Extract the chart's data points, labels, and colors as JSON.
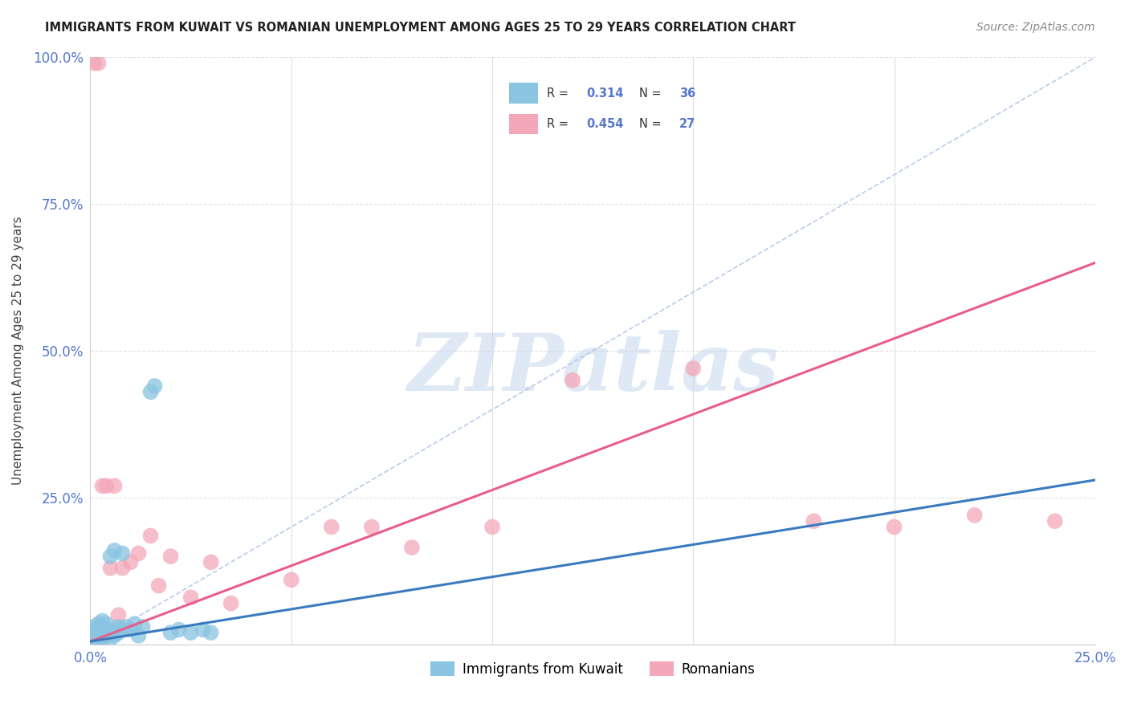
{
  "title": "IMMIGRANTS FROM KUWAIT VS ROMANIAN UNEMPLOYMENT AMONG AGES 25 TO 29 YEARS CORRELATION CHART",
  "source": "Source: ZipAtlas.com",
  "ylabel": "Unemployment Among Ages 25 to 29 years",
  "xlim": [
    0,
    0.25
  ],
  "ylim": [
    0,
    1.0
  ],
  "blue_R": 0.314,
  "blue_N": 36,
  "pink_R": 0.454,
  "pink_N": 27,
  "blue_color": "#89c4e1",
  "pink_color": "#f4a7b9",
  "blue_line_color": "#3a7abf",
  "pink_line_color": "#e85d8a",
  "dash_line_color": "#b0c8e8",
  "watermark": "ZIPatlas",
  "watermark_color": "#c5d8ee",
  "tick_color": "#5577cc",
  "grid_color": "#e0e0e0",
  "blue_x": [
    0.001,
    0.001,
    0.001,
    0.002,
    0.002,
    0.002,
    0.002,
    0.003,
    0.003,
    0.003,
    0.003,
    0.004,
    0.004,
    0.004,
    0.005,
    0.005,
    0.005,
    0.006,
    0.006,
    0.006,
    0.007,
    0.007,
    0.008,
    0.008,
    0.009,
    0.01,
    0.011,
    0.012,
    0.013,
    0.015,
    0.016,
    0.02,
    0.022,
    0.025,
    0.028,
    0.03
  ],
  "blue_y": [
    0.01,
    0.02,
    0.03,
    0.01,
    0.015,
    0.025,
    0.035,
    0.01,
    0.02,
    0.03,
    0.04,
    0.015,
    0.025,
    0.035,
    0.01,
    0.02,
    0.15,
    0.015,
    0.025,
    0.16,
    0.02,
    0.03,
    0.025,
    0.155,
    0.03,
    0.025,
    0.035,
    0.015,
    0.03,
    0.43,
    0.44,
    0.02,
    0.025,
    0.02,
    0.025,
    0.02
  ],
  "pink_x": [
    0.001,
    0.002,
    0.003,
    0.004,
    0.005,
    0.006,
    0.007,
    0.008,
    0.01,
    0.012,
    0.015,
    0.017,
    0.02,
    0.025,
    0.03,
    0.035,
    0.05,
    0.06,
    0.07,
    0.08,
    0.1,
    0.12,
    0.15,
    0.18,
    0.2,
    0.22,
    0.24
  ],
  "pink_y": [
    0.99,
    0.99,
    0.27,
    0.27,
    0.13,
    0.27,
    0.05,
    0.13,
    0.14,
    0.155,
    0.185,
    0.1,
    0.15,
    0.08,
    0.14,
    0.07,
    0.11,
    0.2,
    0.2,
    0.165,
    0.2,
    0.45,
    0.47,
    0.21,
    0.2,
    0.22,
    0.21
  ],
  "blue_trend": [
    0.0,
    0.25
  ],
  "blue_trend_y": [
    0.005,
    0.28
  ],
  "pink_trend": [
    0.0,
    0.25
  ],
  "pink_trend_y": [
    0.005,
    0.65
  ]
}
